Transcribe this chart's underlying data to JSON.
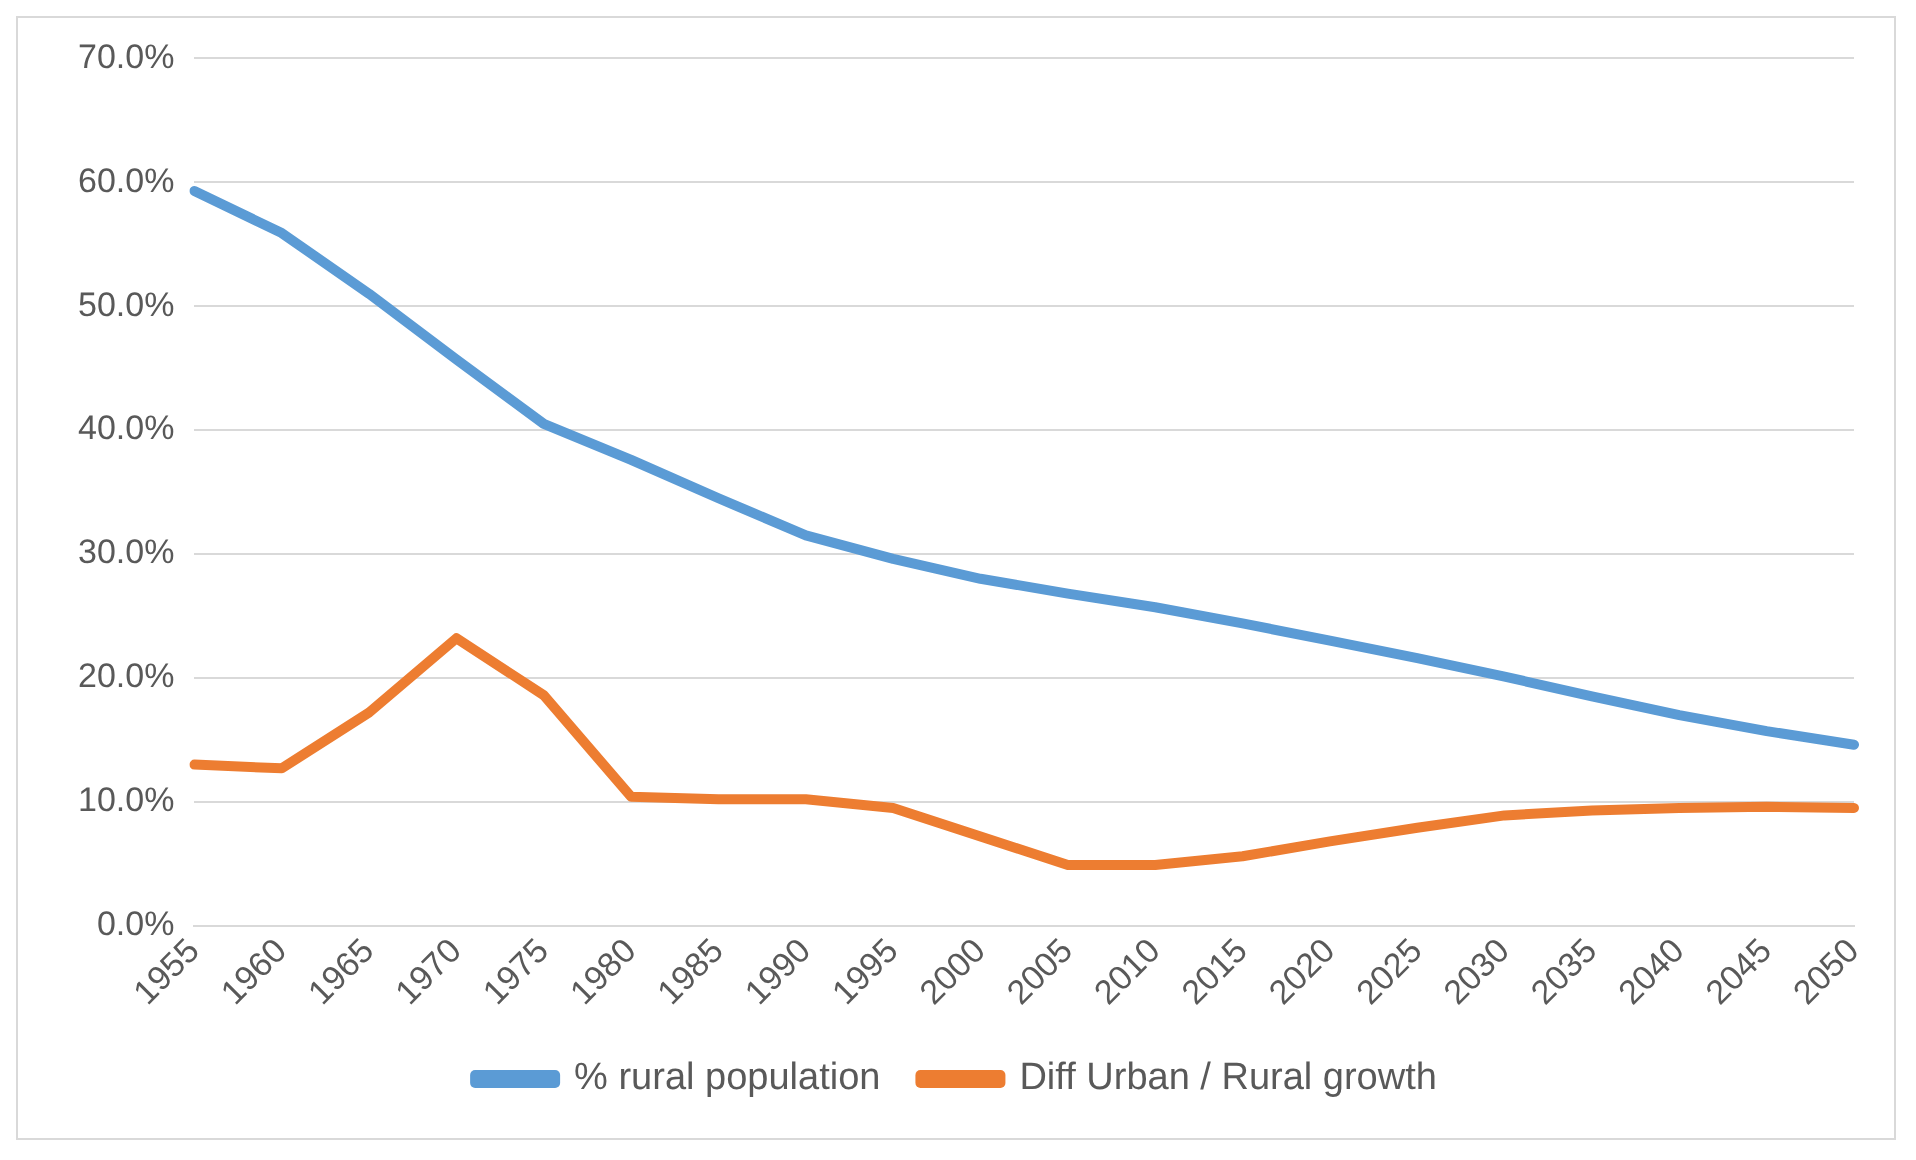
{
  "chart_data": {
    "type": "line",
    "categories": [
      "1955",
      "1960",
      "1965",
      "1970",
      "1975",
      "1980",
      "1985",
      "1990",
      "1995",
      "2000",
      "2005",
      "2010",
      "2015",
      "2020",
      "2025",
      "2030",
      "2035",
      "2040",
      "2045",
      "2050"
    ],
    "series": [
      {
        "name": "% rural population",
        "color": "#5b9bd5",
        "values": [
          59.3,
          55.9,
          51.0,
          45.7,
          40.5,
          37.6,
          34.5,
          31.5,
          29.6,
          28.0,
          26.8,
          25.7,
          24.4,
          23.0,
          21.6,
          20.1,
          18.5,
          17.0,
          15.7,
          14.6
        ]
      },
      {
        "name": "Diff Urban / Rural growth",
        "color": "#ed7d31",
        "values": [
          13.0,
          12.7,
          17.2,
          23.2,
          18.6,
          10.4,
          10.2,
          10.2,
          9.5,
          7.2,
          4.9,
          4.9,
          5.6,
          6.8,
          7.9,
          8.9,
          9.3,
          9.5,
          9.6,
          9.5
        ]
      }
    ],
    "ylim": [
      0,
      70
    ],
    "yticks": [
      {
        "value": 0,
        "label": "0.0%"
      },
      {
        "value": 10,
        "label": "10.0%"
      },
      {
        "value": 20,
        "label": "20.0%"
      },
      {
        "value": 30,
        "label": "30.0%"
      },
      {
        "value": 40,
        "label": "40.0%"
      },
      {
        "value": 50,
        "label": "50.0%"
      },
      {
        "value": 60,
        "label": "60.0%"
      },
      {
        "value": 70,
        "label": "70.0%"
      }
    ],
    "grid": "y",
    "legend": "bottom",
    "marker": "none",
    "line_style": "solid"
  }
}
